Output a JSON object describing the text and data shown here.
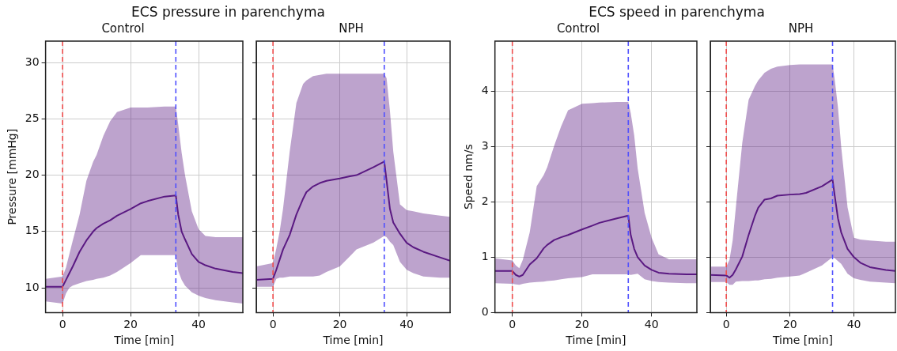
{
  "chart_data": [
    {
      "type": "line",
      "title": "ECS pressure in parenchyma",
      "subtitle": "Control",
      "xlabel": "Time [min]",
      "ylabel": "Pressure [mmHg]",
      "x": [
        -5,
        0,
        1,
        2,
        3,
        5,
        7,
        9,
        10,
        12,
        14,
        16,
        20,
        23,
        25,
        30,
        33.3,
        34,
        35,
        36,
        38,
        40,
        42,
        45,
        50,
        53
      ],
      "series": [
        {
          "color": "#5a1a82",
          "values": [
            10.1,
            10.1,
            10.7,
            11.3,
            11.9,
            13.2,
            14.2,
            15.0,
            15.3,
            15.7,
            16.0,
            16.4,
            17.0,
            17.5,
            17.7,
            18.1,
            18.2,
            16.5,
            15.0,
            14.3,
            13.0,
            12.3,
            12.0,
            11.7,
            11.4,
            11.3
          ],
          "upper": [
            10.8,
            11.0,
            11.8,
            13.0,
            14.2,
            16.5,
            19.5,
            21.2,
            21.8,
            23.5,
            24.8,
            25.6,
            26.0,
            26.0,
            26.0,
            26.1,
            26.1,
            24.5,
            22.0,
            20.0,
            16.8,
            15.2,
            14.6,
            14.5,
            14.5,
            14.5
          ],
          "lower": [
            8.8,
            8.6,
            9.5,
            10.0,
            10.2,
            10.4,
            10.6,
            10.7,
            10.8,
            10.9,
            11.1,
            11.4,
            12.2,
            12.9,
            12.9,
            12.9,
            12.9,
            11.5,
            10.7,
            10.2,
            9.6,
            9.3,
            9.1,
            8.9,
            8.7,
            8.6
          ]
        }
      ],
      "xlim": [
        -5,
        53
      ],
      "xticks": [
        0,
        20,
        40
      ],
      "ylim": [
        7.8,
        31.9
      ],
      "yticks": [
        10,
        15,
        20,
        25,
        30
      ],
      "grid": true,
      "marker": "none",
      "line_style": "solid",
      "ref_lines": [
        {
          "axis": "x",
          "value": 0,
          "color": "#f04e4e",
          "line_style": "dashed"
        },
        {
          "axis": "x",
          "value": 33.3,
          "color": "#4f4fff",
          "line_style": "dashed"
        }
      ]
    },
    {
      "type": "line",
      "subtitle": "NPH",
      "xlabel": "Time [min]",
      "x": [
        -5,
        0,
        1,
        2,
        3,
        5,
        7,
        9,
        10,
        12,
        14,
        16,
        20,
        23,
        25,
        30,
        33.3,
        34,
        35,
        36,
        38,
        40,
        42,
        45,
        50,
        53
      ],
      "series": [
        {
          "color": "#5a1a82",
          "values": [
            10.7,
            10.8,
            11.6,
            12.5,
            13.4,
            14.7,
            16.5,
            17.9,
            18.5,
            19.0,
            19.3,
            19.5,
            19.7,
            19.9,
            20.0,
            20.7,
            21.2,
            19.5,
            17.0,
            15.8,
            14.8,
            14.0,
            13.6,
            13.2,
            12.7,
            12.4
          ],
          "upper": [
            11.9,
            12.2,
            13.5,
            15.0,
            17.0,
            22.1,
            26.4,
            28.1,
            28.4,
            28.8,
            28.9,
            29.0,
            29.0,
            29.0,
            29.0,
            29.0,
            29.0,
            28.6,
            25.7,
            22.1,
            17.4,
            16.9,
            16.8,
            16.6,
            16.4,
            16.3
          ],
          "lower": [
            10.1,
            10.1,
            10.8,
            10.9,
            10.9,
            11.0,
            11.0,
            11.0,
            11.0,
            11.0,
            11.1,
            11.4,
            11.9,
            12.8,
            13.4,
            14.0,
            14.6,
            14.5,
            14.1,
            13.8,
            12.3,
            11.6,
            11.3,
            11.0,
            10.9,
            10.9
          ]
        }
      ],
      "xlim": [
        -5,
        53
      ],
      "xticks": [
        0,
        20,
        40
      ],
      "ylim": [
        7.8,
        31.9
      ],
      "yticks": [
        10,
        15,
        20,
        25,
        30
      ],
      "tick_labels": "x",
      "grid": true,
      "marker": "none",
      "line_style": "solid",
      "ref_lines": [
        {
          "axis": "x",
          "value": 0,
          "color": "#f04e4e",
          "line_style": "dashed"
        },
        {
          "axis": "x",
          "value": 33.3,
          "color": "#4f4fff",
          "line_style": "dashed"
        }
      ]
    },
    {
      "type": "line",
      "title": "ECS speed in parenchyma",
      "subtitle": "Control",
      "xlabel": "Time [min]",
      "ylabel": "Speed nm/s",
      "x": [
        -5,
        0,
        1,
        2,
        3,
        5,
        7,
        9,
        10,
        12,
        14,
        16,
        20,
        23,
        25,
        30,
        33.3,
        34,
        35,
        36,
        38,
        40,
        42,
        45,
        50,
        53
      ],
      "series": [
        {
          "color": "#5a1a82",
          "values": [
            0.75,
            0.75,
            0.68,
            0.65,
            0.68,
            0.87,
            0.98,
            1.16,
            1.22,
            1.31,
            1.36,
            1.4,
            1.5,
            1.57,
            1.62,
            1.7,
            1.75,
            1.4,
            1.15,
            1.0,
            0.85,
            0.77,
            0.72,
            0.7,
            0.69,
            0.69
          ],
          "upper": [
            0.98,
            0.94,
            0.85,
            0.8,
            0.95,
            1.45,
            2.28,
            2.48,
            2.62,
            3.01,
            3.36,
            3.65,
            3.77,
            3.78,
            3.79,
            3.8,
            3.8,
            3.6,
            3.2,
            2.6,
            1.8,
            1.35,
            1.05,
            0.96,
            0.96,
            0.96
          ],
          "lower": [
            0.53,
            0.52,
            0.51,
            0.5,
            0.52,
            0.54,
            0.55,
            0.56,
            0.57,
            0.58,
            0.6,
            0.62,
            0.64,
            0.69,
            0.69,
            0.69,
            0.69,
            0.68,
            0.69,
            0.7,
            0.6,
            0.57,
            0.55,
            0.54,
            0.53,
            0.53
          ]
        }
      ],
      "xlim": [
        -5,
        53
      ],
      "xticks": [
        0,
        20,
        40
      ],
      "ylim": [
        0,
        4.9
      ],
      "yticks": [
        0,
        1,
        2,
        3,
        4
      ],
      "grid": true,
      "marker": "none",
      "line_style": "solid",
      "ref_lines": [
        {
          "axis": "x",
          "value": 0,
          "color": "#f04e4e",
          "line_style": "dashed"
        },
        {
          "axis": "x",
          "value": 33.3,
          "color": "#4f4fff",
          "line_style": "dashed"
        }
      ]
    },
    {
      "type": "line",
      "subtitle": "NPH",
      "xlabel": "Time [min]",
      "x": [
        -5,
        0,
        1,
        2,
        3,
        5,
        7,
        9,
        10,
        12,
        14,
        16,
        20,
        23,
        25,
        30,
        33.3,
        34,
        35,
        36,
        38,
        40,
        42,
        45,
        50,
        53
      ],
      "series": [
        {
          "color": "#5a1a82",
          "values": [
            0.68,
            0.67,
            0.63,
            0.68,
            0.78,
            1.01,
            1.4,
            1.75,
            1.89,
            2.04,
            2.06,
            2.11,
            2.13,
            2.14,
            2.16,
            2.28,
            2.4,
            2.1,
            1.7,
            1.45,
            1.15,
            1.0,
            0.9,
            0.82,
            0.77,
            0.75
          ],
          "upper": [
            0.83,
            0.83,
            0.95,
            1.3,
            1.9,
            3.06,
            3.84,
            4.09,
            4.19,
            4.33,
            4.4,
            4.44,
            4.47,
            4.48,
            4.48,
            4.48,
            4.48,
            4.2,
            3.7,
            3.0,
            1.9,
            1.35,
            1.32,
            1.3,
            1.28,
            1.28
          ],
          "lower": [
            0.55,
            0.55,
            0.5,
            0.5,
            0.56,
            0.57,
            0.57,
            0.58,
            0.58,
            0.6,
            0.61,
            0.63,
            0.65,
            0.67,
            0.72,
            0.85,
            1.0,
            0.98,
            0.93,
            0.88,
            0.7,
            0.62,
            0.59,
            0.56,
            0.54,
            0.53
          ]
        }
      ],
      "xlim": [
        -5,
        53
      ],
      "xticks": [
        0,
        20,
        40
      ],
      "ylim": [
        0,
        4.9
      ],
      "yticks": [
        0,
        1,
        2,
        3,
        4
      ],
      "tick_labels": "x",
      "grid": true,
      "marker": "none",
      "line_style": "solid",
      "ref_lines": [
        {
          "axis": "x",
          "value": 0,
          "color": "#f04e4e",
          "line_style": "dashed"
        },
        {
          "axis": "x",
          "value": 33.3,
          "color": "#4f4fff",
          "line_style": "dashed"
        }
      ]
    }
  ]
}
